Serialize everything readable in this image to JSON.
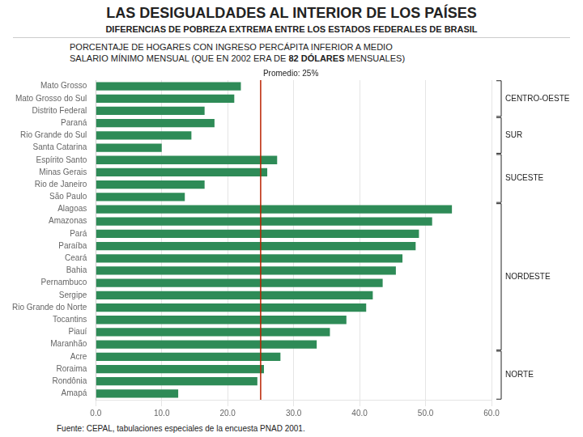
{
  "chart_data": {
    "type": "bar",
    "orientation": "horizontal",
    "title": "LAS  DESIGUALDADES  AL  INTERIOR  DE  LOS  PAÍSES",
    "subtitle": "DIFERENCIAS DE POBREZA EXTREMA ENTRE LOS ESTADOS FEDERALES DE BRASIL",
    "description": [
      [
        {
          "text": "PORCENTAJE DE HOGARES CON INGRESO PERCÁPITA INFERIOR A MEDIO",
          "bold": false
        }
      ],
      [
        {
          "text": "SALARIO MÍNIMO MENSUAL (QUE EN 2002 ERA DE ",
          "bold": false
        },
        {
          "text": "82 DÓLARES",
          "bold": true
        },
        {
          "text": " MENSUALES)",
          "bold": false
        }
      ]
    ],
    "footnote": "Fuente: CEPAL, tabulaciones especiales de la encuesta PNAD 2001.",
    "categories": [
      "Mato Grosso",
      "Mato Grosso do Sul",
      "Distrito Federal",
      "Paraná",
      "Rio Grande do Sul",
      "Santa Catarina",
      "Espírito Santo",
      "Minas Gerais",
      "Rio de Janeiro",
      "São Paulo",
      "Alagoas",
      "Amazonas",
      "Pará",
      "Paraíba",
      "Ceará",
      "Bahia",
      "Pernambuco",
      "Sergipe",
      "Rio Grande do Norte",
      "Tocantins",
      "Piauí",
      "Maranhão",
      "Acre",
      "Roraima",
      "Rondônia",
      "Amapá"
    ],
    "values": [
      22.0,
      21.0,
      16.5,
      18.0,
      14.5,
      10.0,
      27.5,
      26.0,
      16.5,
      13.5,
      54.0,
      51.0,
      49.0,
      48.5,
      46.5,
      45.5,
      43.5,
      42.0,
      41.0,
      38.0,
      35.5,
      33.5,
      28.0,
      25.5,
      24.5,
      12.5
    ],
    "color": "#2e8b57",
    "xlim": [
      0,
      60
    ],
    "xticks": [
      {
        "value": 0,
        "label": "0.0"
      },
      {
        "value": 10,
        "label": "10.0"
      },
      {
        "value": 20,
        "label": "20.0"
      },
      {
        "value": 30,
        "label": "30.0"
      },
      {
        "value": 40,
        "label": "40.0"
      },
      {
        "value": 50,
        "label": "50.0"
      },
      {
        "value": 60,
        "label": "60.0"
      }
    ],
    "grid": true,
    "annotations": [
      {
        "type": "vline",
        "x": 25,
        "label": "Promedio: 25%",
        "color": "#bb2200"
      }
    ],
    "groups": [
      {
        "name": "CENTRO-OESTE",
        "start": "Mato Grosso",
        "end": "Distrito Federal"
      },
      {
        "name": "SUR",
        "start": "Paraná",
        "end": "Santa Catarina"
      },
      {
        "name": "SUCESTE",
        "start": "Espírito Santo",
        "end": "São Paulo"
      },
      {
        "name": "NORDESTE",
        "start": "Alagoas",
        "end": "Maranhão"
      },
      {
        "name": "NORTE",
        "start": "Acre",
        "end": "Amapá"
      }
    ]
  }
}
